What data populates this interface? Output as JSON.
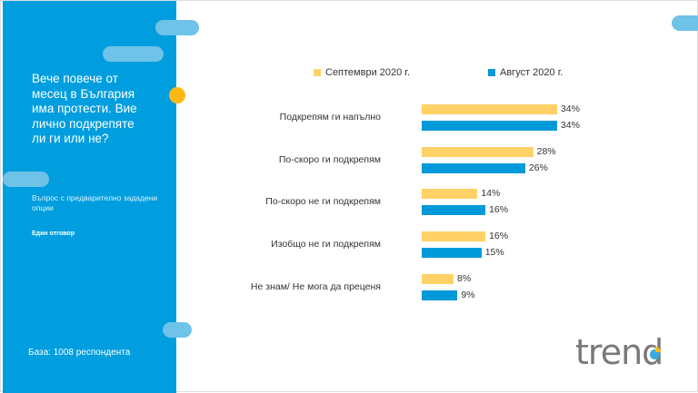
{
  "question": "Вече повече от месец в България има протести. Вие лично подкрепяте ли ги или не?",
  "question_type": "Въпрос с предварително зададени опции",
  "answer_type": "Един отговор",
  "base": "База: 1008 респондента",
  "logo": "trend",
  "chart_data": {
    "type": "bar",
    "orientation": "horizontal",
    "categories": [
      "Подкрепям ги напълно",
      "По-скоро ги подкрепям",
      "По-скоро не ги подкрепям",
      "Изобщо не ги подкрепям",
      "Не знам/ Не мога да преценя"
    ],
    "series": [
      {
        "name": "Септември 2020 г.",
        "color": "#FFD166",
        "values": [
          34,
          28,
          14,
          16,
          8
        ]
      },
      {
        "name": "Август 2020 г.",
        "color": "#0099DA",
        "values": [
          34,
          26,
          16,
          15,
          9
        ]
      }
    ],
    "value_suffix": "%",
    "legend": "top"
  }
}
